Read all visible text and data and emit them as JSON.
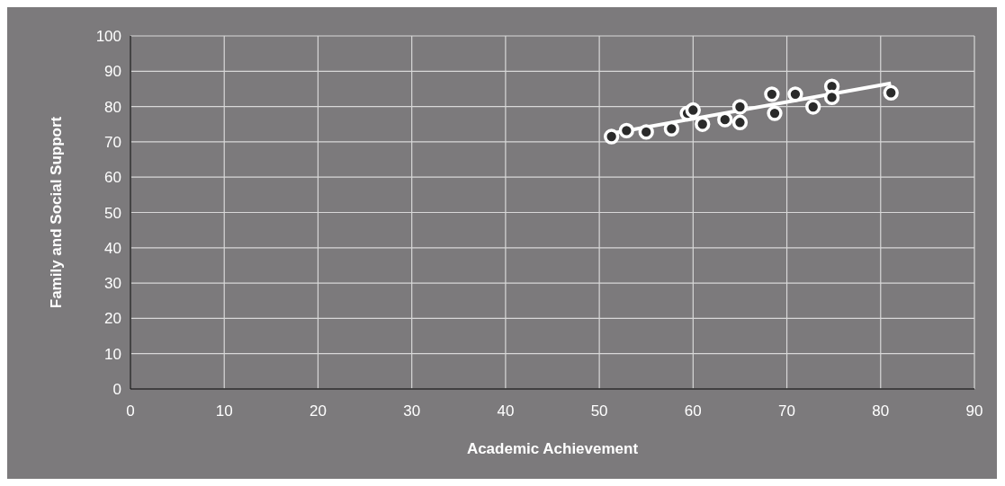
{
  "chart_data": {
    "type": "scatter",
    "xlabel": "Academic Achievement",
    "ylabel": "Family and Social Support",
    "xlim": [
      0,
      90
    ],
    "xticks": [
      0,
      10,
      20,
      30,
      40,
      50,
      60,
      70,
      80,
      90
    ],
    "ylim": [
      0,
      100
    ],
    "yticks": [
      0,
      10,
      20,
      30,
      40,
      50,
      60,
      70,
      80,
      90,
      100
    ],
    "grid": true,
    "series": [
      {
        "marker": "circle",
        "color": "#ffffff",
        "x": [
          51.3,
          52.9,
          55.0,
          57.7,
          59.4,
          60.0,
          61.0,
          63.4,
          65.0,
          65.0,
          68.4,
          68.7,
          70.9,
          72.8,
          74.8,
          74.8,
          81.1
        ],
        "values": [
          71.5,
          73.2,
          72.8,
          73.7,
          78.1,
          79.0,
          75.0,
          76.3,
          79.9,
          75.5,
          83.5,
          78.1,
          83.5,
          79.9,
          85.7,
          82.6,
          83.9
        ]
      },
      {
        "type": "line",
        "color": "#ffffff",
        "x": [
          51.3,
          81.1
        ],
        "values": [
          72.4,
          86.6
        ]
      }
    ]
  }
}
